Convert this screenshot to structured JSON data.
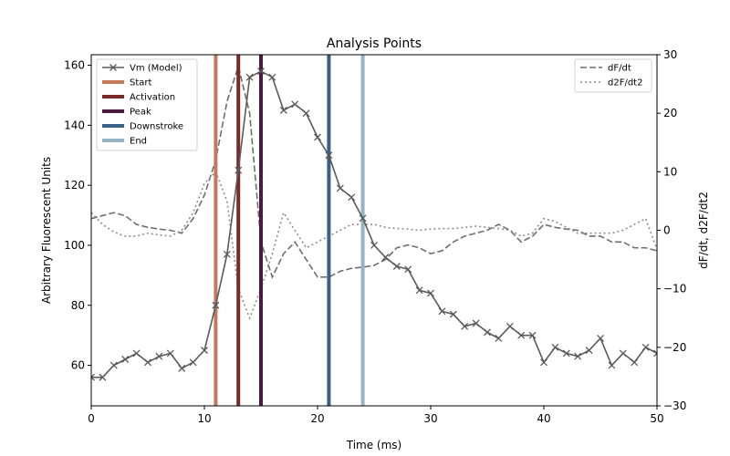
{
  "chart_data": {
    "type": "line",
    "title": "Analysis Points",
    "xlabel": "Time (ms)",
    "ylabel": "Arbitrary Fluorescent Units",
    "y2label": "dF/dt, d2F/dt2",
    "xlim": [
      0,
      50
    ],
    "ylim": [
      46.5,
      163.5
    ],
    "y2lim": [
      -30,
      30
    ],
    "x_ticks": [
      0,
      10,
      20,
      30,
      40,
      50
    ],
    "y_ticks": [
      60,
      80,
      100,
      120,
      140,
      160
    ],
    "y2_ticks": [
      -30,
      -20,
      -10,
      0,
      10,
      20,
      30
    ],
    "grid": false,
    "legend_left_position": "upper-left",
    "legend_right_position": "upper-right",
    "series": [
      {
        "name": "Vm (Model)",
        "axis": "left",
        "style": "solid-x-marker",
        "color": "#5a5a5a",
        "x": [
          0,
          1,
          2,
          3,
          4,
          5,
          6,
          7,
          8,
          9,
          10,
          11,
          12,
          13,
          14,
          15,
          16,
          17,
          18,
          19,
          20,
          21,
          22,
          23,
          24,
          25,
          26,
          27,
          28,
          29,
          30,
          31,
          32,
          33,
          34,
          35,
          36,
          37,
          38,
          39,
          40,
          41,
          42,
          43,
          44,
          45,
          46,
          47,
          48,
          49,
          50
        ],
        "y": [
          56,
          56,
          60,
          62,
          64,
          61,
          63,
          64,
          59,
          61,
          65,
          80,
          97,
          125,
          156,
          158,
          156,
          145,
          147,
          144,
          136,
          130,
          119,
          116,
          109,
          100,
          96,
          93,
          92,
          85,
          84,
          78,
          77,
          73,
          74,
          71,
          69,
          73,
          70,
          70,
          61,
          66,
          64,
          63,
          65,
          69,
          60,
          64,
          61,
          66,
          64
        ]
      },
      {
        "name": "dF/dt",
        "axis": "right",
        "style": "dashed",
        "color": "#6e6e6e",
        "x": [
          0,
          1,
          2,
          3,
          4,
          5,
          6,
          7,
          8,
          9,
          10,
          11,
          12,
          13,
          14,
          15,
          16,
          17,
          18,
          19,
          20,
          21,
          22,
          23,
          24,
          25,
          26,
          27,
          28,
          29,
          30,
          31,
          32,
          33,
          34,
          35,
          36,
          37,
          38,
          39,
          40,
          41,
          42,
          43,
          44,
          45,
          46,
          47,
          48,
          49,
          50
        ],
        "y": [
          2,
          2.5,
          3,
          2.5,
          1,
          0.5,
          0.2,
          0,
          -0.5,
          2,
          6,
          12,
          22,
          28,
          20,
          -2,
          -8,
          -4,
          -2,
          -5,
          -8,
          -8,
          -7,
          -6.5,
          -6.3,
          -6,
          -5,
          -3,
          -2.5,
          -3,
          -4,
          -3.5,
          -2,
          -1,
          -0.5,
          0,
          1,
          0,
          -2,
          -1,
          1,
          0.5,
          0.2,
          0,
          -1,
          -1,
          -2,
          -2,
          -3,
          -3,
          -3.5
        ]
      },
      {
        "name": "d2F/dt2",
        "axis": "right",
        "style": "dotted",
        "color": "#8c8c8c",
        "x": [
          0,
          1,
          2,
          3,
          4,
          5,
          6,
          7,
          8,
          9,
          10,
          11,
          12,
          13,
          14,
          15,
          16,
          17,
          18,
          19,
          20,
          21,
          22,
          23,
          24,
          25,
          26,
          27,
          28,
          29,
          30,
          31,
          32,
          33,
          34,
          35,
          36,
          37,
          38,
          39,
          40,
          41,
          42,
          43,
          44,
          45,
          46,
          47,
          48,
          49,
          50
        ],
        "y": [
          3,
          1,
          -0.3,
          -1,
          -1,
          -0.5,
          -0.8,
          -1,
          0,
          3,
          8,
          10,
          5,
          -10,
          -15,
          -10,
          -4,
          3,
          0,
          -3,
          -2,
          -1,
          0,
          1,
          1,
          1,
          0.5,
          0.3,
          0.2,
          0,
          0.2,
          0.3,
          0.3,
          0.5,
          0.7,
          0.5,
          0.3,
          0,
          -1,
          -0.5,
          2,
          1.5,
          0.5,
          -0.5,
          -0.5,
          -0.5,
          -0.5,
          0,
          1,
          2,
          -3.3
        ]
      }
    ],
    "vlines": [
      {
        "name": "Start",
        "x": 11,
        "color": "#c47a5a"
      },
      {
        "name": "Activation",
        "x": 13,
        "color": "#7b2a2a"
      },
      {
        "name": "Peak",
        "x": 15,
        "color": "#4a1a3f"
      },
      {
        "name": "Downstroke",
        "x": 21,
        "color": "#3b6088"
      },
      {
        "name": "End",
        "x": 24,
        "color": "#94b4c6"
      }
    ]
  }
}
